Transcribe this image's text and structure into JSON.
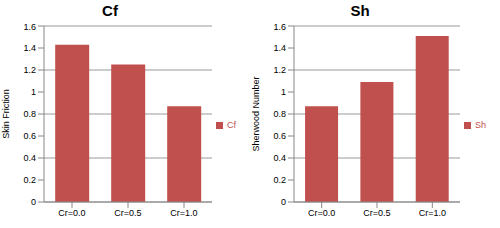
{
  "chart_data": [
    {
      "type": "bar",
      "title": "Cf",
      "y_label": "Skin Friction",
      "categories": [
        "Cr=0.0",
        "Cr=0.5",
        "Cr=1.0"
      ],
      "series": [
        {
          "name": "Cf",
          "color": "#c0504d",
          "values": [
            1.43,
            1.25,
            0.87
          ]
        }
      ],
      "ylim": [
        0,
        1.6
      ],
      "yticks": [
        0,
        0.2,
        0.4,
        0.6,
        0.8,
        1,
        1.2,
        1.4,
        1.6
      ],
      "grid": true,
      "legend": "right"
    },
    {
      "type": "bar",
      "title": "Sh",
      "y_label": "Sherwood Number",
      "categories": [
        "Cr=0.0",
        "Cr=0.5",
        "Cr=1.0"
      ],
      "series": [
        {
          "name": "Sh",
          "color": "#c0504d",
          "values": [
            0.87,
            1.09,
            1.51
          ]
        }
      ],
      "ylim": [
        0,
        1.6
      ],
      "yticks": [
        0,
        0.2,
        0.4,
        0.6,
        0.8,
        1,
        1.2,
        1.4,
        1.6
      ],
      "grid": true,
      "legend": "right"
    }
  ]
}
